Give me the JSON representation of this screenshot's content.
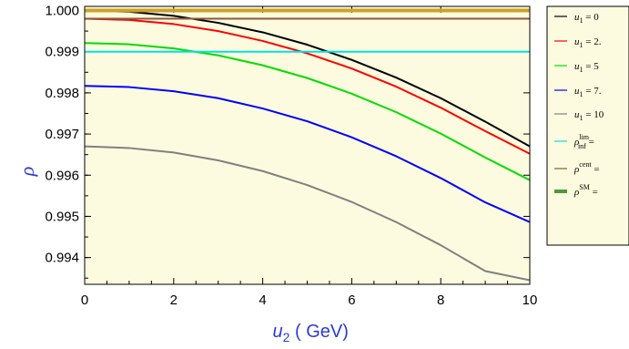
{
  "chart_data": {
    "type": "line",
    "x": [
      0,
      1,
      2,
      3,
      4,
      5,
      6,
      7,
      8,
      9,
      10
    ],
    "xlabel": "u2 ( GeV)",
    "ylabel": "ρ",
    "xlim": [
      0,
      10
    ],
    "ylim": [
      0.99335,
      1.0001
    ],
    "xticks": [
      "0",
      "2",
      "4",
      "6",
      "8",
      "10"
    ],
    "yticks": [
      "0.994",
      "0.995",
      "0.996",
      "0.997",
      "0.998",
      "0.999",
      "1.000"
    ],
    "background": "#fdfbdf",
    "series": [
      {
        "name": "u1 = 0",
        "color": "#000000",
        "width": 2,
        "values": [
          1.0,
          0.99997,
          0.99987,
          0.9997,
          0.99947,
          0.99917,
          0.9988,
          0.99837,
          0.99787,
          0.9973,
          0.9967
        ]
      },
      {
        "name": "u1 = 2.",
        "color": "#ff0000",
        "width": 2,
        "values": [
          0.9998,
          0.99977,
          0.99967,
          0.9995,
          0.99926,
          0.99896,
          0.99859,
          0.99815,
          0.99764,
          0.99707,
          0.99652
        ]
      },
      {
        "name": "u1 = 5",
        "color": "#00dd00",
        "width": 2,
        "values": [
          0.99921,
          0.99918,
          0.99908,
          0.99891,
          0.99867,
          0.99836,
          0.99798,
          0.99753,
          0.99701,
          0.99643,
          0.99588
        ]
      },
      {
        "name": "u1 = 7.",
        "color": "#0000ff",
        "width": 2,
        "values": [
          0.99817,
          0.99814,
          0.99804,
          0.99787,
          0.99762,
          0.99731,
          0.99692,
          0.99646,
          0.99593,
          0.99534,
          0.99486
        ]
      },
      {
        "name": "u1 = 10",
        "color": "#808080",
        "width": 2,
        "values": [
          0.9967,
          0.99666,
          0.99655,
          0.99636,
          0.9961,
          0.99576,
          0.99535,
          0.99486,
          0.9943,
          0.99367,
          0.99345
        ]
      },
      {
        "name": "ρinf lim =",
        "color": "#00e0e0",
        "width": 2,
        "values": [
          0.999,
          0.999,
          0.999,
          0.999,
          0.999,
          0.999,
          0.999,
          0.999,
          0.999,
          0.999,
          0.999
        ]
      },
      {
        "name": "ρcent =",
        "color": "#8b5a3c",
        "width": 2,
        "values": [
          0.9998,
          0.9998,
          0.9998,
          0.9998,
          0.9998,
          0.9998,
          0.9998,
          0.9998,
          0.9998,
          0.9998,
          0.9998
        ]
      },
      {
        "name": "ρSM =",
        "color": "#caa22a",
        "width": 4,
        "values": [
          1.0,
          1.0,
          1.0,
          1.0,
          1.0,
          1.0,
          1.0,
          1.0,
          1.0,
          1.0,
          1.0
        ]
      }
    ],
    "legend": {
      "position": "right",
      "items": [
        {
          "main": "u",
          "sub": "1",
          "rest": " = 0",
          "color": "#000000",
          "bold": false
        },
        {
          "main": "u",
          "sub": "1",
          "rest": " = 2.",
          "color": "#ff0000",
          "bold": false
        },
        {
          "main": "u",
          "sub": "1",
          "rest": " = 5",
          "color": "#00dd00",
          "bold": false
        },
        {
          "main": "u",
          "sub": "1",
          "rest": " = 7.",
          "color": "#0000ff",
          "bold": false
        },
        {
          "main": "u",
          "sub": "1",
          "rest": " = 10",
          "color": "#808080",
          "bold": false
        },
        {
          "main": "ρ",
          "sub": "inf",
          "sup": "lim",
          "rest": " =",
          "color": "#00e0e0",
          "bold": false
        },
        {
          "main": "ρ",
          "sup": "cent",
          "rest": " =",
          "color": "#8b5a3c",
          "bold": false
        },
        {
          "main": "ρ",
          "sup": "SM",
          "rest": " =",
          "color": "#4a9a3a",
          "bold": true
        }
      ]
    }
  }
}
